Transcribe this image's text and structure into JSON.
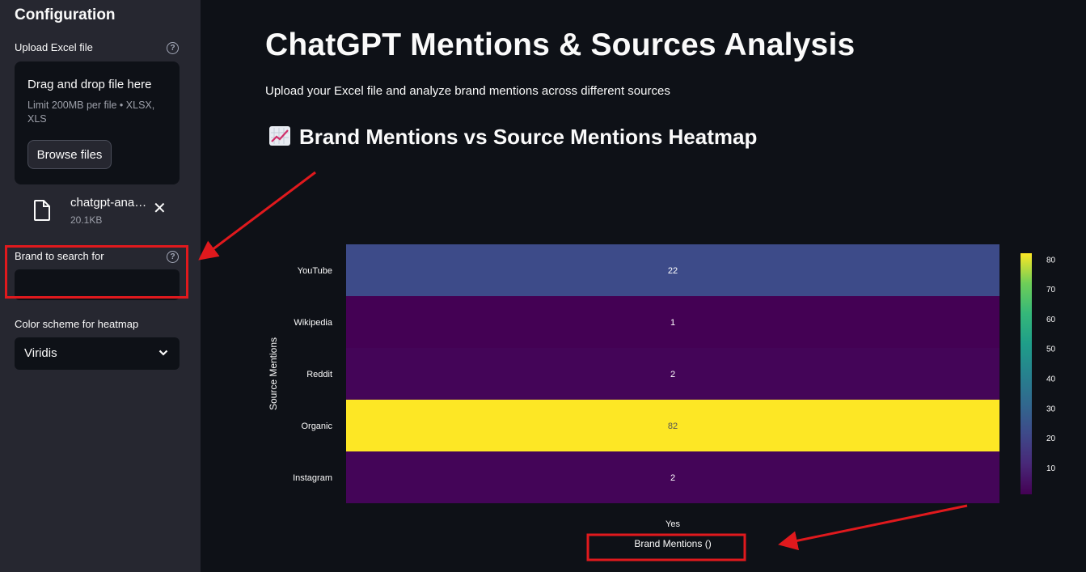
{
  "sidebar": {
    "title": "Configuration",
    "upload": {
      "label": "Upload Excel file",
      "drop_text": "Drag and drop file here",
      "limit_text": "Limit 200MB per file • XLSX, XLS",
      "browse_label": "Browse files"
    },
    "file": {
      "name": "chatgpt-ana…",
      "size": "20.1KB"
    },
    "brand": {
      "label": "Brand to search for",
      "value": ""
    },
    "color_scheme": {
      "label": "Color scheme for heatmap",
      "selected": "Viridis"
    }
  },
  "main": {
    "title": "ChatGPT Mentions & Sources Analysis",
    "description": "Upload your Excel file and analyze brand mentions across different sources",
    "section_title": "Brand Mentions vs Source Mentions Heatmap",
    "section_icon": "chart-increasing-icon"
  },
  "chart_data": {
    "type": "heatmap",
    "title": "",
    "xlabel": "Brand Mentions ()",
    "ylabel": "Source Mentions",
    "x_categories": [
      "Yes"
    ],
    "y_categories": [
      "YouTube",
      "Wikipedia",
      "Reddit",
      "Organic",
      "Instagram"
    ],
    "values": [
      [
        22
      ],
      [
        1
      ],
      [
        2
      ],
      [
        82
      ],
      [
        2
      ]
    ],
    "colorscale": "Viridis",
    "colorbar": {
      "min": 1,
      "max": 82,
      "ticks": [
        10,
        20,
        30,
        40,
        50,
        60,
        70,
        80
      ]
    }
  },
  "annotations": {
    "color": "#e0191d"
  }
}
